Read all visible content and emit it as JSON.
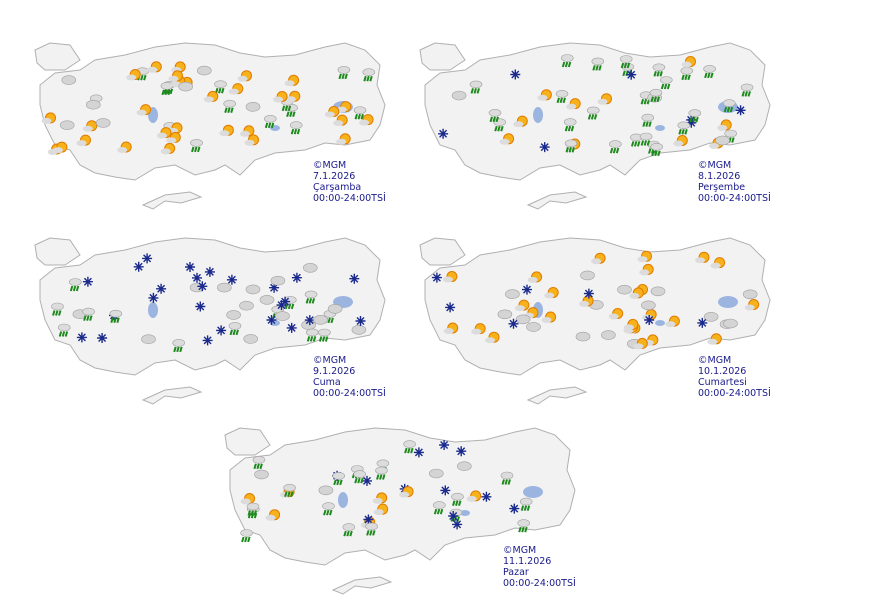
{
  "panels": [
    {
      "copyright": "©MGM",
      "date": "7.1.2026",
      "day": "Çarşamba",
      "time": "00:00-24:00TSİ"
    },
    {
      "copyright": "©MGM",
      "date": "8.1.2026",
      "day": "Perşembe",
      "time": "00:00-24:00TSİ"
    },
    {
      "copyright": "©MGM",
      "date": "9.1.2026",
      "day": "Cuma",
      "time": "00:00-24:00TSİ"
    },
    {
      "copyright": "©MGM",
      "date": "10.1.2026",
      "day": "Cumartesi",
      "time": "00:00-24:00TSİ"
    },
    {
      "copyright": "©MGM",
      "date": "11.1.2026",
      "day": "Pazar",
      "time": "00:00-24:00TSİ"
    }
  ]
}
